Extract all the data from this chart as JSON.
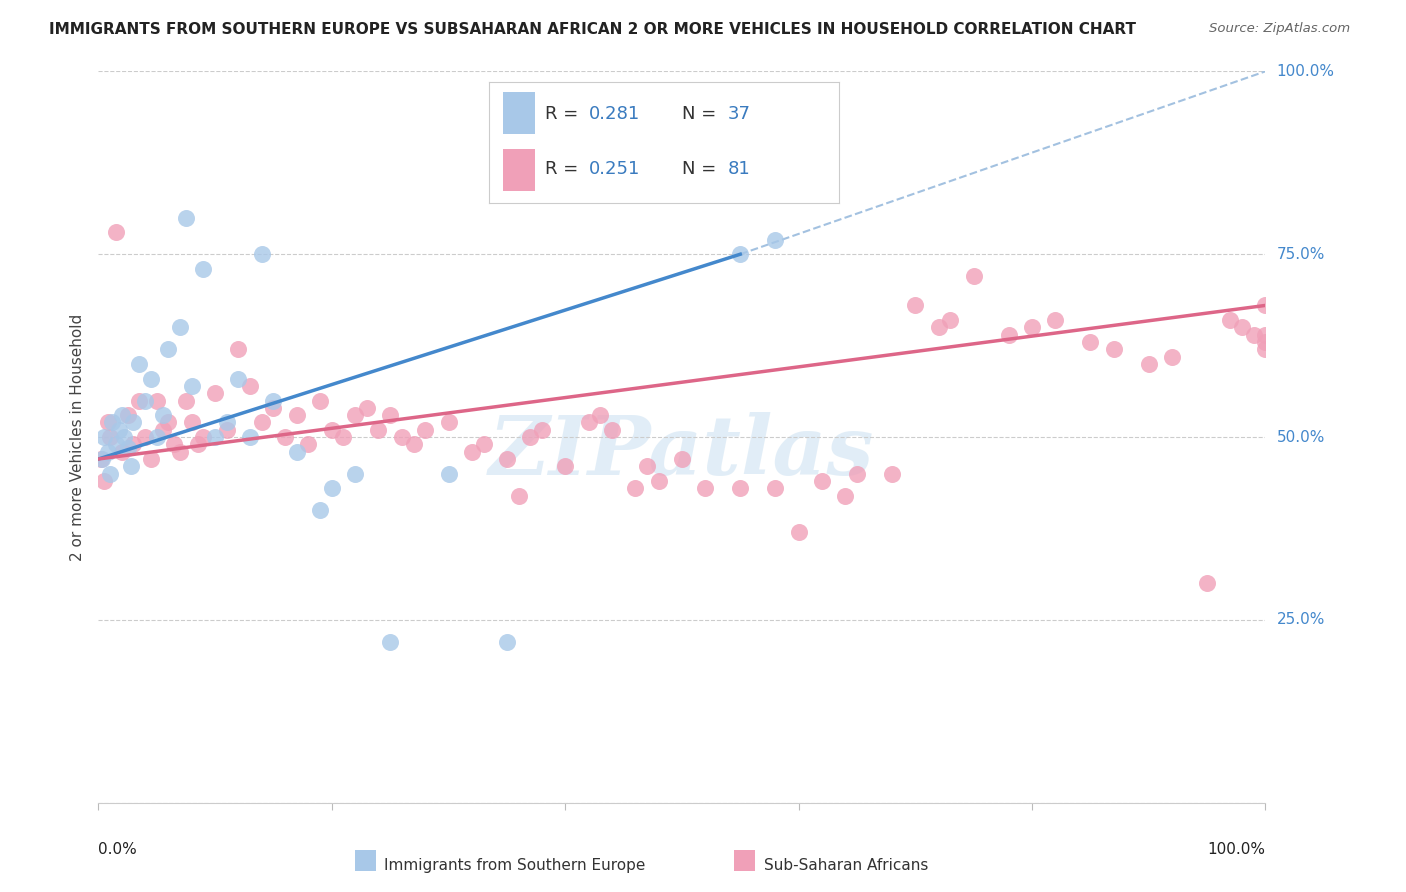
{
  "title": "IMMIGRANTS FROM SOUTHERN EUROPE VS SUBSAHARAN AFRICAN 2 OR MORE VEHICLES IN HOUSEHOLD CORRELATION CHART",
  "source": "Source: ZipAtlas.com",
  "ylabel": "2 or more Vehicles in Household",
  "legend_label1": "Immigrants from Southern Europe",
  "legend_label2": "Sub-Saharan Africans",
  "R1": 0.281,
  "N1": 37,
  "R2": 0.251,
  "N2": 81,
  "color_blue": "#a8c8e8",
  "color_pink": "#f0a0b8",
  "color_blue_line": "#4488cc",
  "color_pink_line": "#dd6688",
  "color_dashed": "#99bbdd",
  "watermark": "ZIPatlas",
  "blue_x": [
    0.3,
    0.5,
    0.8,
    1.0,
    1.2,
    1.5,
    1.8,
    2.0,
    2.2,
    2.5,
    2.8,
    3.0,
    3.5,
    4.0,
    4.5,
    5.0,
    5.5,
    6.0,
    7.0,
    7.5,
    8.0,
    9.0,
    10.0,
    11.0,
    12.0,
    13.0,
    14.0,
    15.0,
    17.0,
    19.0,
    20.0,
    22.0,
    25.0,
    30.0,
    35.0,
    55.0,
    58.0
  ],
  "blue_y": [
    47.0,
    50.0,
    48.0,
    45.0,
    52.0,
    49.0,
    51.0,
    53.0,
    50.0,
    48.5,
    46.0,
    52.0,
    60.0,
    55.0,
    58.0,
    50.0,
    53.0,
    62.0,
    65.0,
    80.0,
    57.0,
    73.0,
    50.0,
    52.0,
    58.0,
    50.0,
    75.0,
    55.0,
    48.0,
    40.0,
    43.0,
    45.0,
    22.0,
    45.0,
    22.0,
    75.0,
    77.0
  ],
  "pink_x": [
    0.2,
    0.5,
    0.8,
    1.0,
    1.5,
    2.0,
    2.5,
    3.0,
    3.5,
    4.0,
    4.5,
    5.0,
    5.5,
    6.0,
    6.5,
    7.0,
    7.5,
    8.0,
    8.5,
    9.0,
    10.0,
    11.0,
    12.0,
    13.0,
    14.0,
    15.0,
    16.0,
    17.0,
    18.0,
    19.0,
    20.0,
    21.0,
    22.0,
    23.0,
    24.0,
    25.0,
    26.0,
    27.0,
    28.0,
    30.0,
    32.0,
    33.0,
    35.0,
    36.0,
    37.0,
    38.0,
    40.0,
    42.0,
    43.0,
    44.0,
    46.0,
    47.0,
    48.0,
    50.0,
    52.0,
    55.0,
    58.0,
    60.0,
    62.0,
    64.0,
    65.0,
    68.0,
    70.0,
    72.0,
    73.0,
    75.0,
    78.0,
    80.0,
    82.0,
    85.0,
    87.0,
    90.0,
    92.0,
    95.0,
    97.0,
    98.0,
    99.0,
    100.0,
    100.0,
    100.0,
    100.0
  ],
  "pink_y": [
    47.0,
    44.0,
    52.0,
    50.0,
    78.0,
    48.0,
    53.0,
    49.0,
    55.0,
    50.0,
    47.0,
    55.0,
    51.0,
    52.0,
    49.0,
    48.0,
    55.0,
    52.0,
    49.0,
    50.0,
    56.0,
    51.0,
    62.0,
    57.0,
    52.0,
    54.0,
    50.0,
    53.0,
    49.0,
    55.0,
    51.0,
    50.0,
    53.0,
    54.0,
    51.0,
    53.0,
    50.0,
    49.0,
    51.0,
    52.0,
    48.0,
    49.0,
    47.0,
    42.0,
    50.0,
    51.0,
    46.0,
    52.0,
    53.0,
    51.0,
    43.0,
    46.0,
    44.0,
    47.0,
    43.0,
    43.0,
    43.0,
    37.0,
    44.0,
    42.0,
    45.0,
    45.0,
    68.0,
    65.0,
    66.0,
    72.0,
    64.0,
    65.0,
    66.0,
    63.0,
    62.0,
    60.0,
    61.0,
    30.0,
    66.0,
    65.0,
    64.0,
    63.0,
    64.0,
    62.0,
    68.0
  ],
  "xlim": [
    0,
    100
  ],
  "ylim": [
    0,
    100
  ],
  "yticks": [
    0,
    25,
    50,
    75,
    100
  ],
  "ytick_labels": [
    "0.0%",
    "25.0%",
    "50.0%",
    "75.0%",
    "100.0%"
  ],
  "blue_line_x0": 0,
  "blue_line_y0": 47,
  "blue_line_x1": 55,
  "blue_line_y1": 75,
  "pink_line_x0": 0,
  "pink_line_y0": 47,
  "pink_line_x1": 100,
  "pink_line_y1": 68,
  "dash_line_x0": 55,
  "dash_line_y0": 75,
  "dash_line_x1": 100,
  "dash_line_y1": 100
}
